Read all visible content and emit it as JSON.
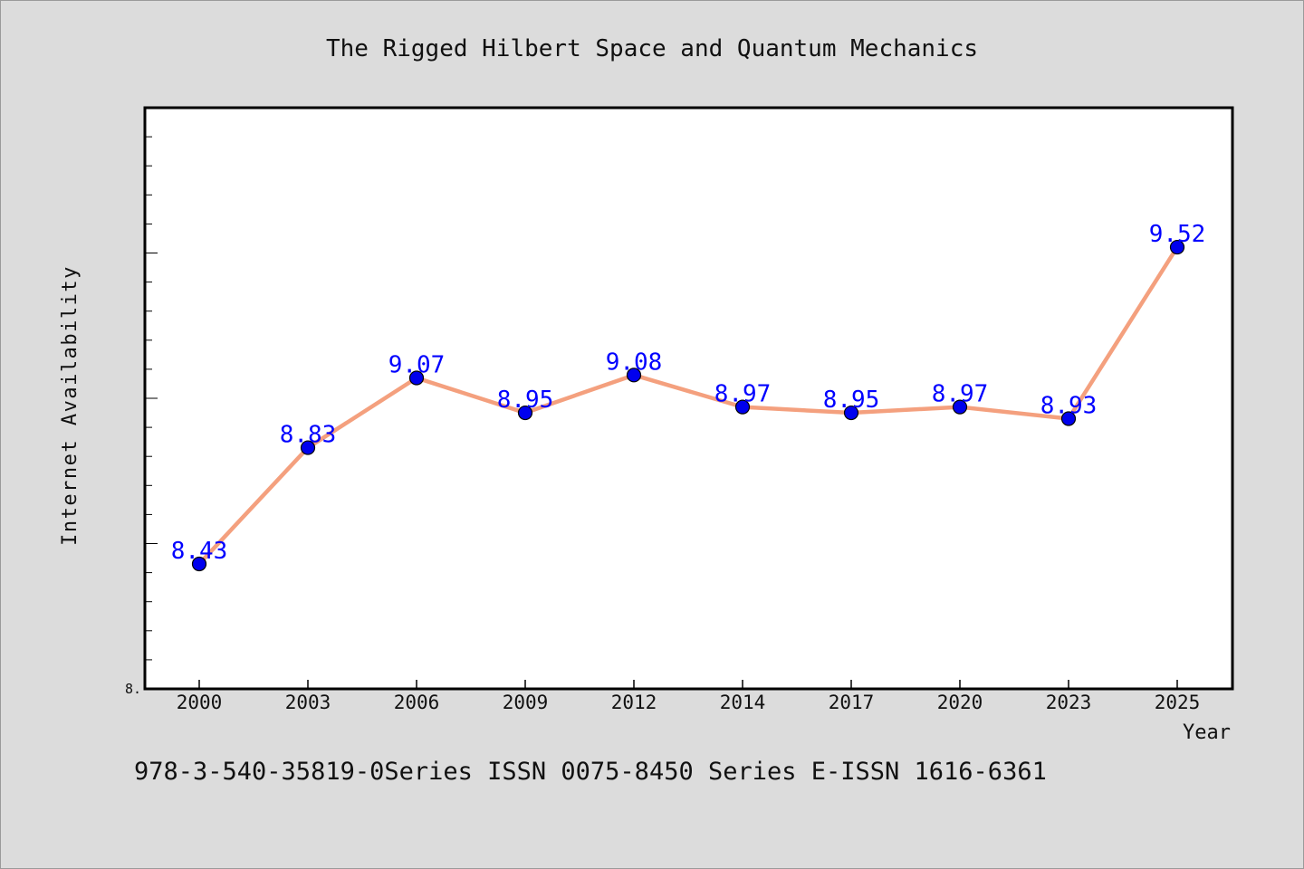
{
  "chart_data": {
    "type": "line",
    "title": "The Rigged Hilbert Space and Quantum Mechanics",
    "xlabel": "Year",
    "ylabel": "Internet Availability",
    "categories": [
      "2000",
      "2003",
      "2006",
      "2009",
      "2012",
      "2014",
      "2017",
      "2020",
      "2023",
      "2025"
    ],
    "series": [
      {
        "values": [
          8.43,
          8.83,
          9.07,
          8.95,
          9.08,
          8.97,
          8.95,
          8.97,
          8.93,
          9.52
        ],
        "labels": [
          "8.43",
          "8.83",
          "9.07",
          "8.95",
          "9.08",
          "8.97",
          "8.95",
          "8.97",
          "8.93",
          "9.52"
        ],
        "line_color": "#f4a07e",
        "marker_color": "#0000ee"
      }
    ],
    "ylim": [
      8.0,
      10.0
    ],
    "y_tick_label": "8.",
    "grid": false,
    "legend": "none"
  },
  "footer": {
    "text": "978-3-540-35819-0Series ISSN 0075-8450 Series E-ISSN 1616-6361"
  }
}
